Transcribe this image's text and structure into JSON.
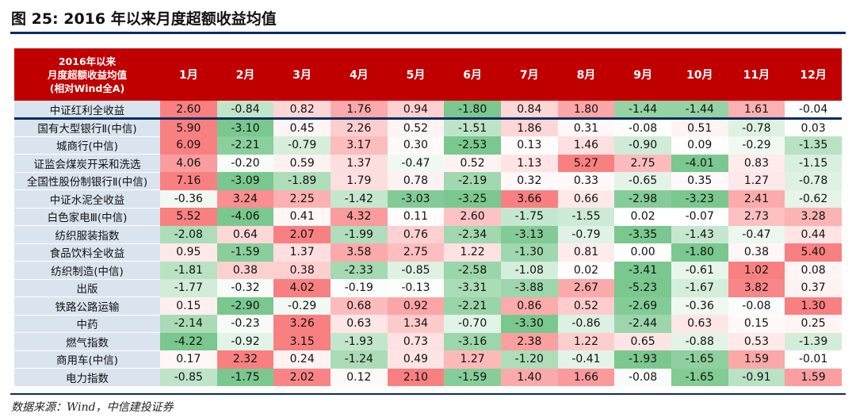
{
  "figure": {
    "title": "图 25: 2016 年以来月度超额收益均值",
    "source": "数据来源：Wind，中信建投证券"
  },
  "table": {
    "corner_lines": [
      "2016年以来",
      "月度超额收益均值",
      "(相对Wind全A)"
    ],
    "months": [
      "1月",
      "2月",
      "3月",
      "4月",
      "5月",
      "6月",
      "7月",
      "8月",
      "9月",
      "10月",
      "11月",
      "12月"
    ],
    "rows": [
      {
        "name": "中证红利全收益",
        "values": [
          "2.60",
          "-0.84",
          "0.82",
          "1.76",
          "0.94",
          "-1.80",
          "0.84",
          "1.80",
          "-1.44",
          "-1.44",
          "1.61",
          "-0.04"
        ]
      },
      {
        "name": "国有大型银行Ⅱ(中信)",
        "values": [
          "5.90",
          "-3.10",
          "0.45",
          "2.26",
          "0.52",
          "-1.51",
          "1.86",
          "0.31",
          "-0.08",
          "0.51",
          "-0.78",
          "0.03"
        ]
      },
      {
        "name": "城商行(中信)",
        "values": [
          "6.09",
          "-2.21",
          "-0.79",
          "3.17",
          "0.30",
          "-2.53",
          "0.13",
          "1.46",
          "-0.90",
          "0.09",
          "-0.29",
          "-1.35"
        ]
      },
      {
        "name": "证监会煤炭开采和洗选",
        "values": [
          "4.06",
          "-0.20",
          "0.59",
          "1.37",
          "-0.47",
          "0.52",
          "1.13",
          "5.27",
          "2.75",
          "-4.01",
          "0.83",
          "-1.15"
        ]
      },
      {
        "name": "全国性股份制银行Ⅱ(中信)",
        "values": [
          "7.16",
          "-3.09",
          "-1.89",
          "1.79",
          "0.78",
          "-2.19",
          "0.32",
          "0.33",
          "-0.65",
          "0.35",
          "1.27",
          "-0.78"
        ]
      },
      {
        "name": "中证水泥全收益",
        "values": [
          "-0.36",
          "3.24",
          "2.25",
          "-1.42",
          "-3.03",
          "-3.25",
          "3.66",
          "0.66",
          "-2.98",
          "-3.23",
          "2.41",
          "-0.62"
        ]
      },
      {
        "name": "白色家电Ⅲ(中信)",
        "values": [
          "5.52",
          "-4.06",
          "0.41",
          "4.32",
          "0.11",
          "2.60",
          "-1.75",
          "-1.55",
          "0.02",
          "-0.07",
          "2.73",
          "3.28"
        ]
      },
      {
        "name": "纺织服装指数",
        "values": [
          "-2.08",
          "0.64",
          "2.07",
          "-1.99",
          "0.76",
          "-2.34",
          "-3.13",
          "-0.79",
          "-3.35",
          "-1.43",
          "-0.47",
          "0.44"
        ]
      },
      {
        "name": "食品饮料全收益",
        "values": [
          "0.95",
          "-1.59",
          "1.37",
          "3.58",
          "2.75",
          "1.22",
          "-1.30",
          "0.81",
          "0.00",
          "-1.80",
          "0.38",
          "5.40"
        ]
      },
      {
        "name": "纺织制造(中信)",
        "values": [
          "-1.81",
          "0.38",
          "0.38",
          "-2.33",
          "-0.85",
          "-2.58",
          "-1.08",
          "0.02",
          "-3.41",
          "-0.61",
          "1.02",
          "0.08"
        ]
      },
      {
        "name": "出版",
        "values": [
          "-1.77",
          "-0.32",
          "4.02",
          "-0.19",
          "-0.13",
          "-3.31",
          "-3.88",
          "2.67",
          "-5.23",
          "-1.67",
          "3.82",
          "0.37"
        ]
      },
      {
        "name": "铁路公路运输",
        "values": [
          "0.15",
          "-2.90",
          "-0.29",
          "0.68",
          "0.92",
          "-2.21",
          "0.86",
          "0.52",
          "-2.69",
          "-0.36",
          "-0.08",
          "1.30"
        ]
      },
      {
        "name": "中药",
        "values": [
          "-2.14",
          "-0.23",
          "3.26",
          "0.63",
          "1.34",
          "-0.70",
          "-3.30",
          "-0.86",
          "-2.44",
          "0.63",
          "0.15",
          "0.25"
        ]
      },
      {
        "name": "燃气指数",
        "values": [
          "-4.22",
          "-0.92",
          "3.15",
          "-1.93",
          "0.73",
          "-3.16",
          "2.38",
          "1.22",
          "0.65",
          "-0.88",
          "0.53",
          "-1.39"
        ]
      },
      {
        "name": "商用车(中信)",
        "values": [
          "0.17",
          "2.32",
          "0.24",
          "-1.24",
          "0.49",
          "1.27",
          "-1.20",
          "-0.41",
          "-1.93",
          "-1.65",
          "1.59",
          "-0.01"
        ]
      },
      {
        "name": "电力指数",
        "values": [
          "-0.85",
          "-1.75",
          "2.02",
          "0.12",
          "2.10",
          "-1.59",
          "1.40",
          "1.66",
          "-0.08",
          "-1.65",
          "-0.91",
          "1.59"
        ]
      }
    ]
  },
  "colors": {
    "header_bg": "#c00000",
    "name_bg": "#dae4ef",
    "positive": "#f8696b",
    "negative": "#63be7b",
    "neutral": "#ffffff",
    "rule": "#0b2b5e"
  }
}
